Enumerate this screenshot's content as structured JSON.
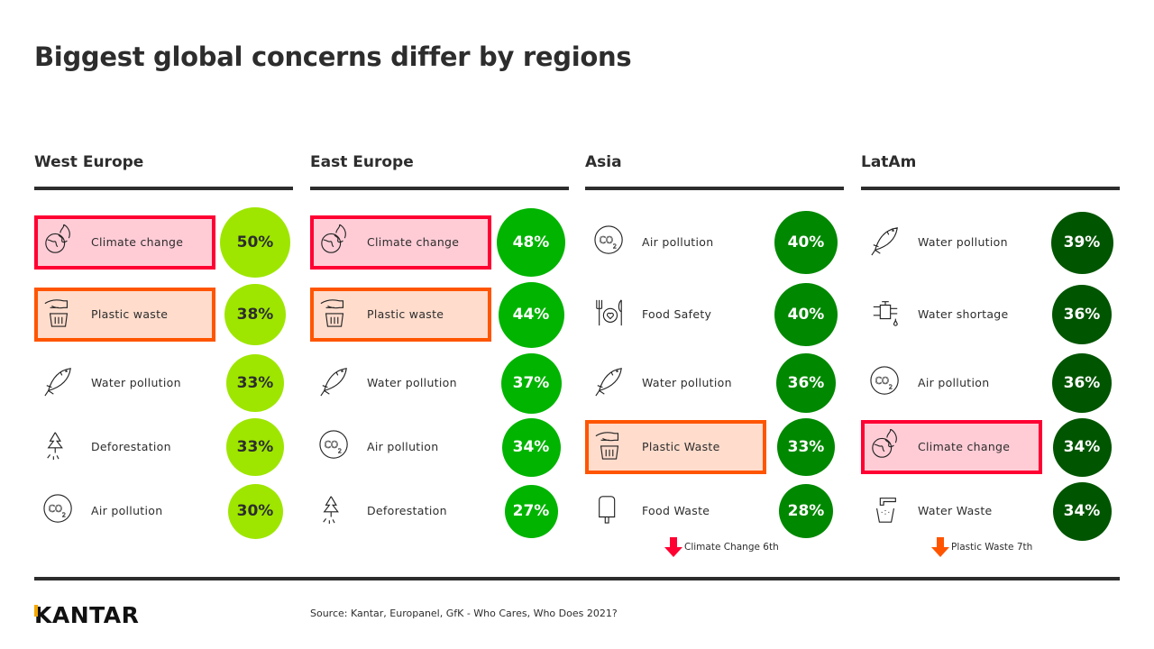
{
  "title": "Biggest global concerns differ by regions",
  "colors": {
    "west": "#9ee600",
    "east": "#00b400",
    "asia": "#008800",
    "latam": "#005500",
    "climate_highlight": "#ff0033",
    "plastic_highlight": "#ff5500"
  },
  "regions": [
    {
      "name": "West Europe",
      "color_key": "west",
      "text_dark": true,
      "items": [
        {
          "label": "Climate change",
          "value": "50%",
          "pct": 50,
          "icon": "earth-fire-icon",
          "highlight": "red"
        },
        {
          "label": "Plastic waste",
          "value": "38%",
          "pct": 38,
          "icon": "hand-bin-icon",
          "highlight": "orange"
        },
        {
          "label": "Water pollution",
          "value": "33%",
          "pct": 33,
          "icon": "dead-fish-icon"
        },
        {
          "label": "Deforestation",
          "value": "33%",
          "pct": 33,
          "icon": "cut-tree-icon"
        },
        {
          "label": "Air pollution",
          "value": "30%",
          "pct": 30,
          "icon": "co2-icon"
        }
      ]
    },
    {
      "name": "East Europe",
      "color_key": "east",
      "items": [
        {
          "label": "Climate change",
          "value": "48%",
          "pct": 48,
          "icon": "earth-fire-icon",
          "highlight": "red"
        },
        {
          "label": "Plastic waste",
          "value": "44%",
          "pct": 44,
          "icon": "hand-bin-icon",
          "highlight": "orange"
        },
        {
          "label": "Water pollution",
          "value": "37%",
          "pct": 37,
          "icon": "dead-fish-icon"
        },
        {
          "label": "Air pollution",
          "value": "34%",
          "pct": 34,
          "icon": "co2-icon"
        },
        {
          "label": "Deforestation",
          "value": "27%",
          "pct": 27,
          "icon": "cut-tree-icon"
        }
      ]
    },
    {
      "name": "Asia",
      "color_key": "asia",
      "note": "Climate Change 6th",
      "note_color": "#ff0033",
      "items": [
        {
          "label": "Air pollution",
          "value": "40%",
          "pct": 40,
          "icon": "co2-icon"
        },
        {
          "label": "Food Safety",
          "value": "40%",
          "pct": 40,
          "icon": "plate-heart-icon"
        },
        {
          "label": "Water pollution",
          "value": "36%",
          "pct": 36,
          "icon": "dead-fish-icon"
        },
        {
          "label": "Plastic Waste",
          "value": "33%",
          "pct": 33,
          "icon": "hand-bin-icon",
          "highlight": "orange"
        },
        {
          "label": "Food Waste",
          "value": "28%",
          "pct": 28,
          "icon": "ice-cream-icon"
        }
      ]
    },
    {
      "name": "LatAm",
      "color_key": "latam",
      "note": "Plastic Waste 7th",
      "note_color": "#ff5500",
      "items": [
        {
          "label": "Water pollution",
          "value": "39%",
          "pct": 39,
          "icon": "dead-fish-icon"
        },
        {
          "label": "Water shortage",
          "value": "36%",
          "pct": 36,
          "icon": "tap-drop-icon"
        },
        {
          "label": "Air pollution",
          "value": "36%",
          "pct": 36,
          "icon": "co2-icon"
        },
        {
          "label": "Climate change",
          "value": "34%",
          "pct": 34,
          "icon": "earth-fire-icon",
          "highlight": "red"
        },
        {
          "label": "Water Waste",
          "value": "34%",
          "pct": 34,
          "icon": "tap-glass-icon"
        }
      ]
    }
  ],
  "logo": "KANTAR",
  "source": "Source: Kantar, Europanel, GfK - Who Cares, Who Does 2021?"
}
